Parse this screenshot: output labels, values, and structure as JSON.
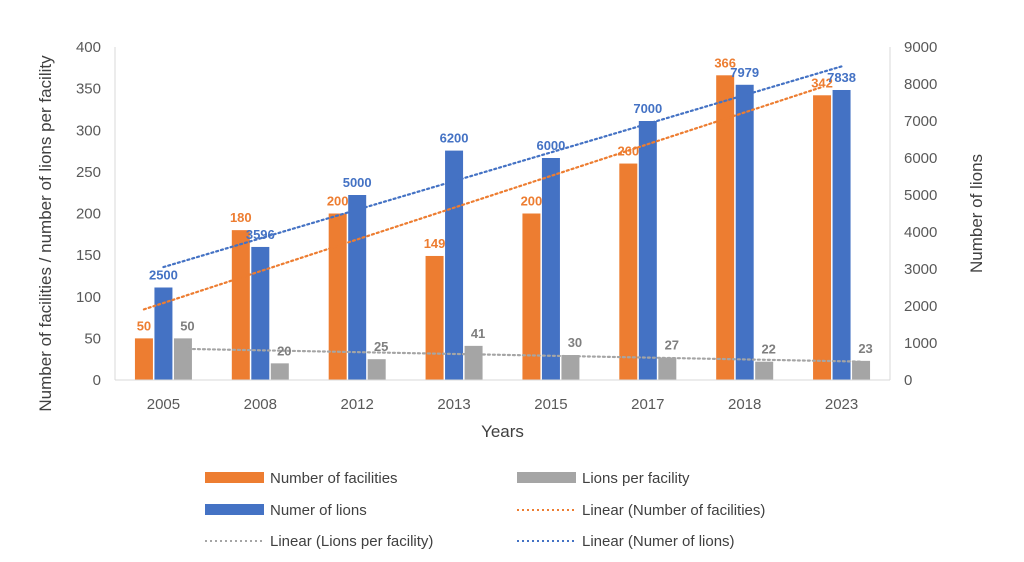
{
  "chart_data": {
    "type": "bar",
    "categories": [
      "2005",
      "2008",
      "2012",
      "2013",
      "2015",
      "2017",
      "2018",
      "2023"
    ],
    "xlabel": "Years",
    "ylabel_left": "Number of facilities / number of lions per facility",
    "ylabel_right": "Number of lions",
    "ylim_left": [
      0,
      400
    ],
    "ylim_right": [
      0,
      9000
    ],
    "yticks_left": [
      0,
      50,
      100,
      150,
      200,
      250,
      300,
      350,
      400
    ],
    "yticks_right": [
      0,
      1000,
      2000,
      3000,
      4000,
      5000,
      6000,
      7000,
      8000,
      9000
    ],
    "series": [
      {
        "name": "Number of facilities",
        "axis": "left",
        "color": "#ED7D31",
        "values": [
          50,
          180,
          200,
          149,
          200,
          260,
          366,
          342
        ],
        "labels": [
          "50",
          "180",
          "200",
          "149",
          "200",
          "260",
          "366",
          "342"
        ]
      },
      {
        "name": "Numer of lions",
        "axis": "right",
        "color": "#4472C4",
        "values": [
          2500,
          3596,
          5000,
          6200,
          6000,
          7000,
          7979,
          7838
        ],
        "labels": [
          "2500",
          "3596",
          "5000",
          "6200",
          "6000",
          "7000",
          "7979",
          "7838"
        ]
      },
      {
        "name": "Lions per facility",
        "axis": "left",
        "color": "#A5A5A5",
        "values": [
          50,
          20,
          25,
          41,
          30,
          27,
          22,
          23
        ],
        "labels": [
          "50",
          "20",
          "25",
          "41",
          "30",
          "27",
          "22",
          "23"
        ]
      }
    ],
    "trendlines": [
      {
        "name": "Linear (Number of facilities)",
        "of": "Number of facilities",
        "color": "#ED7D31"
      },
      {
        "name": "Linear (Lions per facility)",
        "of": "Lions per facility",
        "color": "#A5A5A5"
      },
      {
        "name": "Linear (Numer of lions)",
        "of": "Numer of lions",
        "color": "#4472C4"
      }
    ],
    "legend": {
      "position": "bottom",
      "items": [
        {
          "label": "Number of facilities",
          "kind": "bar",
          "color": "#ED7D31"
        },
        {
          "label": "Lions per facility",
          "kind": "bar",
          "color": "#A5A5A5"
        },
        {
          "label": "Numer of lions",
          "kind": "bar",
          "color": "#4472C4"
        },
        {
          "label": "Linear (Number of facilities)",
          "kind": "dotted",
          "color": "#ED7D31"
        },
        {
          "label": "Linear (Lions per facility)",
          "kind": "dotted",
          "color": "#A5A5A5"
        },
        {
          "label": "Linear (Numer of lions)",
          "kind": "dotted",
          "color": "#4472C4"
        }
      ]
    }
  }
}
